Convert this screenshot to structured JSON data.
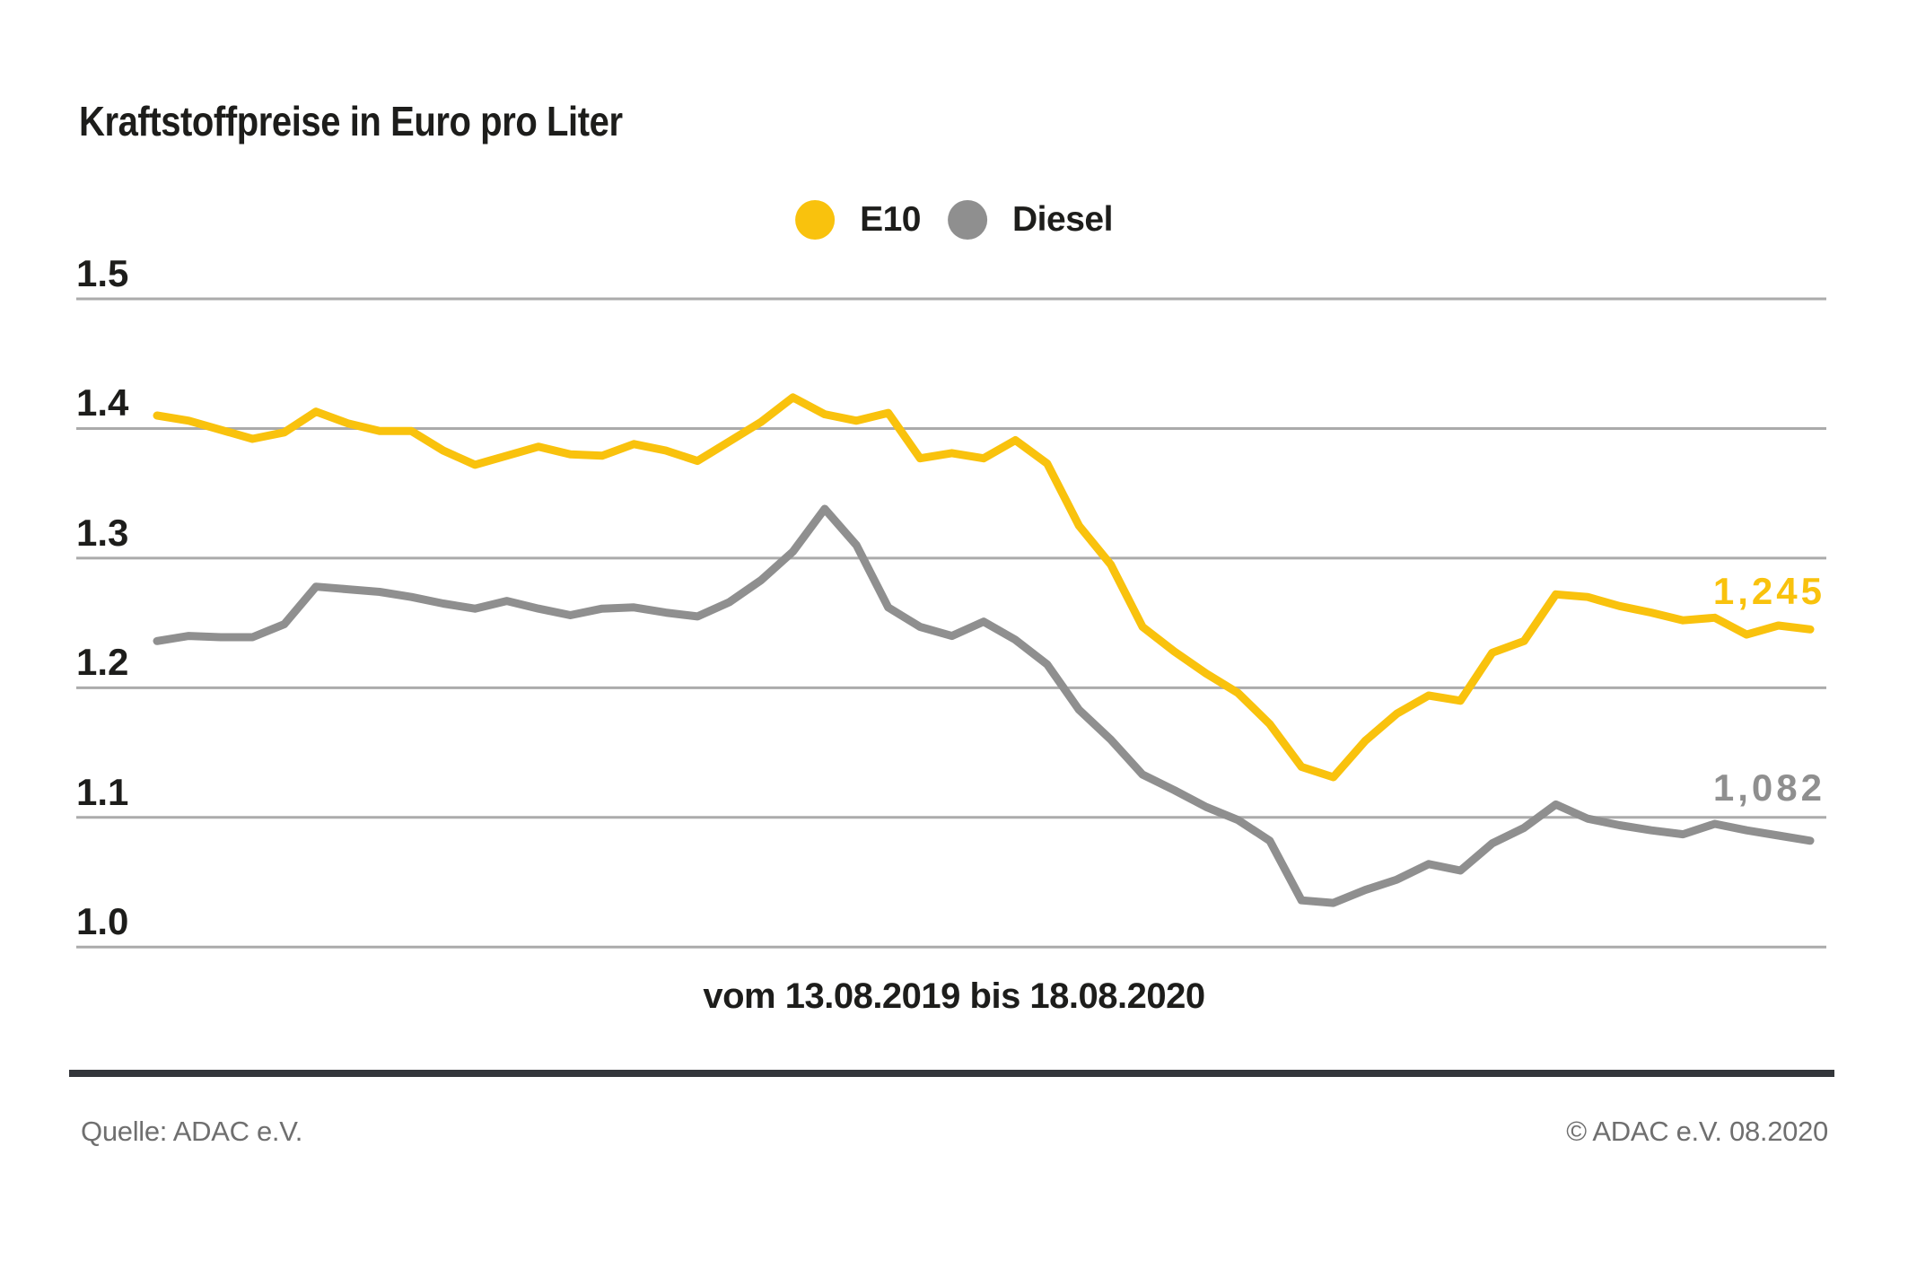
{
  "title": "Kraftstoffpreise in Euro pro Liter",
  "legend": {
    "items": [
      {
        "label": "E10",
        "color": "#f9c20d",
        "icon": "e10-swatch-icon"
      },
      {
        "label": "Diesel",
        "color": "#8f8f8f",
        "icon": "diesel-swatch-icon"
      }
    ]
  },
  "chart_data": {
    "type": "line",
    "title": "Kraftstoffpreise in Euro pro Liter",
    "x_caption": "vom 13.08.2019 bis 18.08.2020",
    "x_range": [
      "13.08.2019",
      "18.08.2020"
    ],
    "x_interval": "weekly",
    "ylabel": "Euro pro Liter",
    "y_ticks": [
      "1.5",
      "1.4",
      "1.3",
      "1.2",
      "1.1",
      "1.0"
    ],
    "ylim": [
      0.97,
      1.52
    ],
    "grid": "horizontal",
    "legend_position": "top-center",
    "series": [
      {
        "name": "E10",
        "color": "#f9c20d",
        "end_label": "1,245",
        "values": [
          1.41,
          1.406,
          1.399,
          1.392,
          1.397,
          1.413,
          1.404,
          1.398,
          1.398,
          1.383,
          1.372,
          1.379,
          1.386,
          1.38,
          1.379,
          1.388,
          1.383,
          1.375,
          1.39,
          1.405,
          1.424,
          1.411,
          1.406,
          1.412,
          1.377,
          1.381,
          1.377,
          1.391,
          1.373,
          1.325,
          1.295,
          1.247,
          1.228,
          1.211,
          1.196,
          1.172,
          1.139,
          1.131,
          1.159,
          1.18,
          1.194,
          1.19,
          1.227,
          1.236,
          1.272,
          1.27,
          1.263,
          1.258,
          1.252,
          1.254,
          1.241,
          1.248,
          1.245
        ]
      },
      {
        "name": "Diesel",
        "color": "#8f8f8f",
        "end_label": "1,082",
        "values": [
          1.236,
          1.24,
          1.239,
          1.239,
          1.249,
          1.278,
          1.276,
          1.274,
          1.27,
          1.265,
          1.261,
          1.267,
          1.261,
          1.256,
          1.261,
          1.262,
          1.258,
          1.255,
          1.266,
          1.283,
          1.305,
          1.338,
          1.31,
          1.262,
          1.247,
          1.24,
          1.251,
          1.237,
          1.218,
          1.183,
          1.16,
          1.133,
          1.121,
          1.108,
          1.098,
          1.082,
          1.036,
          1.034,
          1.044,
          1.052,
          1.064,
          1.059,
          1.08,
          1.092,
          1.11,
          1.099,
          1.094,
          1.09,
          1.087,
          1.095,
          1.09,
          1.086,
          1.082
        ]
      }
    ]
  },
  "footer": {
    "source": "Quelle: ADAC e.V.",
    "copyright": "© ADAC e.V. 08.2020"
  }
}
